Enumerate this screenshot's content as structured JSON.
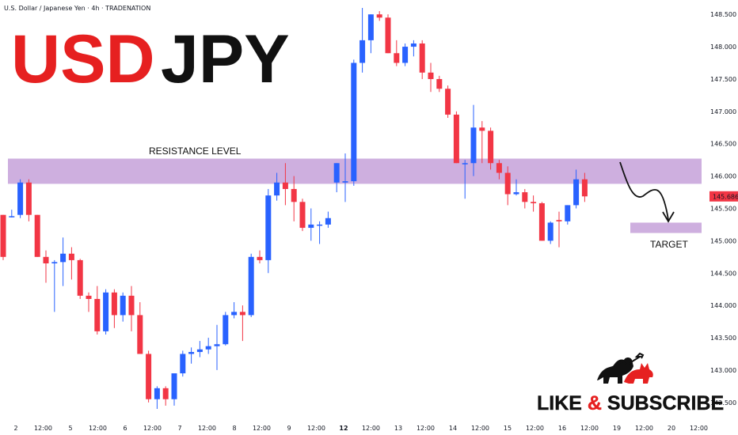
{
  "header": {
    "symbol_line": "U.S. Dollar / Japanese Yen · 4h · TRADENATION"
  },
  "title": {
    "part1": "USD",
    "part2": "JPY"
  },
  "cta": {
    "text": "LIKE & SUBSCRIBE"
  },
  "colors": {
    "up": "#2962ff",
    "down": "#f23645",
    "zone": "#c9a6dc",
    "title_red": "#e62020",
    "title_black": "#111111",
    "price_badge": "#f23645"
  },
  "chart_data": {
    "type": "candlestick",
    "timeframe": "4h",
    "ylim": [
      142.4,
      148.6
    ],
    "y_ticks": [
      "142.500",
      "143.000",
      "143.500",
      "144.000",
      "144.500",
      "145.000",
      "145.500",
      "146.000",
      "146.500",
      "147.000",
      "147.500",
      "148.000",
      "148.500"
    ],
    "x_ticks": [
      {
        "label": "2",
        "bold": false
      },
      {
        "label": "12:00",
        "bold": false
      },
      {
        "label": "5",
        "bold": false
      },
      {
        "label": "12:00",
        "bold": false
      },
      {
        "label": "6",
        "bold": false
      },
      {
        "label": "12:00",
        "bold": false
      },
      {
        "label": "7",
        "bold": false
      },
      {
        "label": "12:00",
        "bold": false
      },
      {
        "label": "8",
        "bold": false
      },
      {
        "label": "12:00",
        "bold": false
      },
      {
        "label": "9",
        "bold": false
      },
      {
        "label": "12:00",
        "bold": false
      },
      {
        "label": "12",
        "bold": true
      },
      {
        "label": "12:00",
        "bold": false
      },
      {
        "label": "13",
        "bold": false
      },
      {
        "label": "12:00",
        "bold": false
      },
      {
        "label": "14",
        "bold": false
      },
      {
        "label": "12:00",
        "bold": false
      },
      {
        "label": "15",
        "bold": false
      },
      {
        "label": "12:00",
        "bold": false
      },
      {
        "label": "16",
        "bold": false
      },
      {
        "label": "12:00",
        "bold": false
      },
      {
        "label": "19",
        "bold": false
      },
      {
        "label": "12:00",
        "bold": false
      },
      {
        "label": "20",
        "bold": false
      },
      {
        "label": "12:00",
        "bold": false
      }
    ],
    "last_price": "145.686",
    "resistance_zone": {
      "label": "RESISTANCE LEVEL",
      "low": 145.88,
      "high": 146.27
    },
    "target_zone": {
      "label": "TARGET",
      "low": 145.12,
      "high": 145.28
    },
    "candles": [
      {
        "o": 145.4,
        "h": 145.4,
        "l": 144.7,
        "c": 144.75
      },
      {
        "o": 145.38,
        "h": 145.48,
        "l": 145.36,
        "c": 145.38
      },
      {
        "o": 145.4,
        "h": 145.95,
        "l": 145.35,
        "c": 145.9
      },
      {
        "o": 145.9,
        "h": 145.95,
        "l": 145.3,
        "c": 145.4
      },
      {
        "o": 145.4,
        "h": 145.4,
        "l": 144.75,
        "c": 144.75
      },
      {
        "o": 144.75,
        "h": 144.85,
        "l": 144.35,
        "c": 144.65
      },
      {
        "o": 144.65,
        "h": 144.7,
        "l": 143.9,
        "c": 144.67
      },
      {
        "o": 144.67,
        "h": 145.05,
        "l": 144.3,
        "c": 144.8
      },
      {
        "o": 144.8,
        "h": 144.9,
        "l": 144.4,
        "c": 144.7
      },
      {
        "o": 144.7,
        "h": 144.72,
        "l": 144.1,
        "c": 144.15
      },
      {
        "o": 144.15,
        "h": 144.2,
        "l": 143.9,
        "c": 144.1
      },
      {
        "o": 144.1,
        "h": 144.3,
        "l": 143.55,
        "c": 143.6
      },
      {
        "o": 143.6,
        "h": 144.25,
        "l": 143.55,
        "c": 144.2
      },
      {
        "o": 144.2,
        "h": 144.25,
        "l": 143.65,
        "c": 143.85
      },
      {
        "o": 143.85,
        "h": 144.2,
        "l": 143.75,
        "c": 144.15
      },
      {
        "o": 144.15,
        "h": 144.3,
        "l": 143.6,
        "c": 143.85
      },
      {
        "o": 143.85,
        "h": 144.05,
        "l": 143.25,
        "c": 143.25
      },
      {
        "o": 143.25,
        "h": 143.3,
        "l": 142.5,
        "c": 142.55
      },
      {
        "o": 142.55,
        "h": 142.75,
        "l": 142.4,
        "c": 142.72
      },
      {
        "o": 142.72,
        "h": 142.75,
        "l": 142.45,
        "c": 142.55
      },
      {
        "o": 142.55,
        "h": 142.95,
        "l": 142.45,
        "c": 142.95
      },
      {
        "o": 142.95,
        "h": 143.3,
        "l": 142.9,
        "c": 143.25
      },
      {
        "o": 143.25,
        "h": 143.35,
        "l": 143.1,
        "c": 143.28
      },
      {
        "o": 143.28,
        "h": 143.45,
        "l": 143.2,
        "c": 143.32
      },
      {
        "o": 143.32,
        "h": 143.5,
        "l": 143.25,
        "c": 143.37
      },
      {
        "o": 143.37,
        "h": 143.7,
        "l": 143.0,
        "c": 143.4
      },
      {
        "o": 143.4,
        "h": 143.9,
        "l": 143.38,
        "c": 143.85
      },
      {
        "o": 143.85,
        "h": 144.05,
        "l": 143.8,
        "c": 143.9
      },
      {
        "o": 143.9,
        "h": 144.0,
        "l": 143.45,
        "c": 143.85
      },
      {
        "o": 143.85,
        "h": 144.8,
        "l": 143.82,
        "c": 144.75
      },
      {
        "o": 144.75,
        "h": 144.85,
        "l": 144.65,
        "c": 144.7
      },
      {
        "o": 144.7,
        "h": 145.8,
        "l": 144.5,
        "c": 145.7
      },
      {
        "o": 145.7,
        "h": 146.05,
        "l": 145.62,
        "c": 145.9
      },
      {
        "o": 145.9,
        "h": 146.2,
        "l": 145.55,
        "c": 145.8
      },
      {
        "o": 145.8,
        "h": 146.0,
        "l": 145.3,
        "c": 145.6
      },
      {
        "o": 145.6,
        "h": 145.65,
        "l": 145.15,
        "c": 145.2
      },
      {
        "o": 145.2,
        "h": 145.5,
        "l": 145.0,
        "c": 145.25
      },
      {
        "o": 145.25,
        "h": 145.3,
        "l": 144.95,
        "c": 145.25
      },
      {
        "o": 145.25,
        "h": 145.45,
        "l": 145.2,
        "c": 145.35
      },
      {
        "o": 145.9,
        "h": 146.2,
        "l": 145.75,
        "c": 146.2
      },
      {
        "o": 145.9,
        "h": 146.35,
        "l": 145.6,
        "c": 145.92
      },
      {
        "o": 145.92,
        "h": 147.8,
        "l": 145.85,
        "c": 147.75
      },
      {
        "o": 147.75,
        "h": 148.6,
        "l": 147.6,
        "c": 148.1
      },
      {
        "o": 148.1,
        "h": 148.5,
        "l": 147.9,
        "c": 148.5
      },
      {
        "o": 148.5,
        "h": 148.55,
        "l": 148.4,
        "c": 148.45
      },
      {
        "o": 148.45,
        "h": 148.5,
        "l": 147.9,
        "c": 147.9
      },
      {
        "o": 147.9,
        "h": 148.1,
        "l": 147.7,
        "c": 147.75
      },
      {
        "o": 147.75,
        "h": 148.05,
        "l": 147.7,
        "c": 148.0
      },
      {
        "o": 148.0,
        "h": 148.1,
        "l": 147.85,
        "c": 148.05
      },
      {
        "o": 148.05,
        "h": 148.1,
        "l": 147.5,
        "c": 147.6
      },
      {
        "o": 147.6,
        "h": 147.75,
        "l": 147.3,
        "c": 147.5
      },
      {
        "o": 147.5,
        "h": 147.55,
        "l": 147.3,
        "c": 147.35
      },
      {
        "o": 147.35,
        "h": 147.4,
        "l": 146.9,
        "c": 146.95
      },
      {
        "o": 146.95,
        "h": 147.0,
        "l": 146.2,
        "c": 146.2
      },
      {
        "o": 146.2,
        "h": 146.25,
        "l": 145.65,
        "c": 146.2
      },
      {
        "o": 146.2,
        "h": 147.1,
        "l": 146.0,
        "c": 146.75
      },
      {
        "o": 146.75,
        "h": 146.85,
        "l": 146.2,
        "c": 146.7
      },
      {
        "o": 146.7,
        "h": 146.75,
        "l": 146.1,
        "c": 146.2
      },
      {
        "o": 146.2,
        "h": 146.25,
        "l": 145.95,
        "c": 146.05
      },
      {
        "o": 146.05,
        "h": 146.15,
        "l": 145.55,
        "c": 145.72
      },
      {
        "o": 145.72,
        "h": 145.95,
        "l": 145.7,
        "c": 145.75
      },
      {
        "o": 145.75,
        "h": 145.8,
        "l": 145.5,
        "c": 145.6
      },
      {
        "o": 145.6,
        "h": 145.7,
        "l": 145.45,
        "c": 145.58
      },
      {
        "o": 145.58,
        "h": 145.6,
        "l": 145.0,
        "c": 145.0
      },
      {
        "o": 145.0,
        "h": 145.3,
        "l": 144.95,
        "c": 145.28
      },
      {
        "o": 145.32,
        "h": 145.45,
        "l": 144.9,
        "c": 145.3
      },
      {
        "o": 145.3,
        "h": 145.55,
        "l": 145.25,
        "c": 145.55
      },
      {
        "o": 145.55,
        "h": 146.1,
        "l": 145.5,
        "c": 145.95
      },
      {
        "o": 145.95,
        "h": 146.05,
        "l": 145.6,
        "c": 145.686
      }
    ]
  }
}
